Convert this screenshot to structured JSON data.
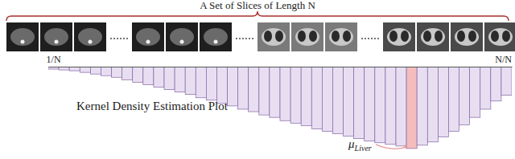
{
  "chart_data": {
    "type": "bar",
    "title": "A Set of Slices of Length N",
    "subtitle": "Kernel Density Estimation Plot",
    "categories": [
      "1/N",
      null,
      null,
      null,
      null,
      null,
      null,
      null,
      null,
      null,
      null,
      null,
      null,
      null,
      null,
      null,
      null,
      null,
      null,
      null,
      null,
      null,
      null,
      null,
      null,
      null,
      null,
      null,
      null,
      null,
      null,
      null,
      null,
      null,
      null,
      null,
      null,
      null,
      null,
      null,
      null,
      null,
      null,
      "N/N"
    ],
    "values": [
      0.03,
      0.04,
      0.05,
      0.07,
      0.09,
      0.11,
      0.13,
      0.16,
      0.19,
      0.22,
      0.25,
      0.28,
      0.31,
      0.34,
      0.38,
      0.41,
      0.45,
      0.48,
      0.52,
      0.55,
      0.59,
      0.62,
      0.66,
      0.69,
      0.72,
      0.76,
      0.79,
      0.82,
      0.85,
      0.88,
      0.91,
      0.93,
      0.95,
      0.97,
      1.0,
      0.96,
      0.92,
      0.86,
      0.79,
      0.71,
      0.62,
      0.52,
      0.42,
      0.35
    ],
    "colors": [
      "#e8def1",
      "#e8def1",
      "#e8def1",
      "#e8def1",
      "#e8def1",
      "#e8def1",
      "#e8def1",
      "#e8def1",
      "#e8def1",
      "#e8def1",
      "#e8def1",
      "#e8def1",
      "#e8def1",
      "#e8def1",
      "#e8def1",
      "#e8def1",
      "#e8def1",
      "#e8def1",
      "#e8def1",
      "#e8def1",
      "#e8def1",
      "#e8def1",
      "#e8def1",
      "#e8def1",
      "#e8def1",
      "#e8def1",
      "#e8def1",
      "#e8def1",
      "#e8def1",
      "#e8def1",
      "#e8def1",
      "#e8def1",
      "#e8def1",
      "#e8def1",
      "#f4bcbc",
      "#e8def1",
      "#e8def1",
      "#e8def1",
      "#e8def1",
      "#e8def1",
      "#e8def1",
      "#e8def1",
      "#e8def1",
      "#e8def1"
    ],
    "ylim": [
      0,
      1.05
    ],
    "grid": false,
    "data_labels": false,
    "tick_labels": "x",
    "annotations": [
      {
        "text": "μ",
        "subscript": "Liver",
        "index": 34
      }
    ]
  }
}
